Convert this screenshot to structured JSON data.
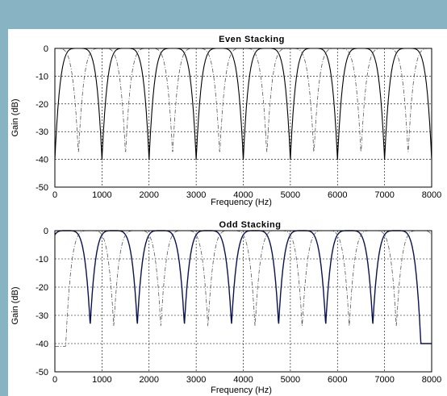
{
  "colors": {
    "background": "#88b3c2",
    "panel": "#ffffff",
    "even_solid": "#000000",
    "odd_solid": "#0a1250",
    "dashed": "#555555",
    "grid": "#000000"
  },
  "chart_data": [
    {
      "type": "line",
      "title": "Even Stacking",
      "xlabel": "Frequency (Hz)",
      "ylabel": "Gain (dB)",
      "xlim": [
        0,
        8000
      ],
      "ylim": [
        -50,
        0
      ],
      "x_ticks": [
        "0",
        "1000",
        "2000",
        "3000",
        "4000",
        "5000",
        "6000",
        "7000",
        "8000"
      ],
      "y_ticks": [
        "0",
        "-10",
        "-20",
        "-30",
        "-40",
        "-50"
      ],
      "grid": true,
      "series": [
        {
          "style": "solid",
          "passband_centers_hz": [
            500,
            1500,
            2500,
            3500,
            4500,
            5500,
            6500,
            7500
          ],
          "peak_db": 0,
          "floor_db": -48
        },
        {
          "style": "dash-dot",
          "passband_centers_hz": [
            0,
            1000,
            2000,
            3000,
            4000,
            5000,
            6000,
            7000,
            8000
          ],
          "peak_db": 0,
          "floor_db": -46
        }
      ]
    },
    {
      "type": "line",
      "title": "Odd Stacking",
      "xlabel": "Frequency (Hz)",
      "ylabel": "Gain (dB)",
      "xlim": [
        0,
        8000
      ],
      "ylim": [
        -50,
        0
      ],
      "x_ticks": [
        "0",
        "1000",
        "2000",
        "3000",
        "4000",
        "5000",
        "6000",
        "7000",
        "8000"
      ],
      "y_ticks": [
        "0",
        "-10",
        "-20",
        "-30",
        "-40",
        "-50"
      ],
      "grid": true,
      "series": [
        {
          "style": "solid",
          "passband_centers_hz": [
            250,
            1250,
            2250,
            3250,
            4250,
            5250,
            6250,
            7250
          ],
          "peak_db": 0,
          "floor_db": -40
        },
        {
          "style": "dash-dot",
          "passband_centers_hz": [
            750,
            1750,
            2750,
            3750,
            4750,
            5750,
            6750,
            7750
          ],
          "peak_db": 0,
          "floor_db": -41
        }
      ]
    }
  ]
}
